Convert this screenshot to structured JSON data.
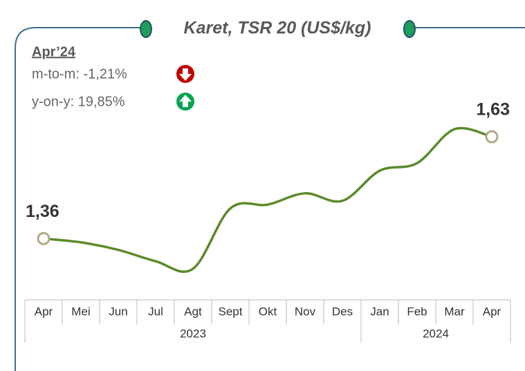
{
  "chart_data": {
    "type": "line",
    "title": "Karet, TSR 20 (US$/kg)",
    "annotations": {
      "period": "Apr’24",
      "mom": "m-to-m: -1,21%",
      "yoy": "y-on-y: 19,85%"
    },
    "categories": [
      "Apr",
      "Mei",
      "Jun",
      "Jul",
      "Agt",
      "Sept",
      "Okt",
      "Nov",
      "Des",
      "Jan",
      "Feb",
      "Mar",
      "Apr"
    ],
    "groups": [
      {
        "label": "2023",
        "count": 9
      },
      {
        "label": "2024",
        "count": 4
      }
    ],
    "series": [
      {
        "name": "Karet",
        "color": "#5b8a2a",
        "values": [
          1.36,
          1.35,
          1.33,
          1.3,
          1.28,
          1.44,
          1.45,
          1.48,
          1.46,
          1.54,
          1.56,
          1.65,
          1.63
        ],
        "value_labels": [
          "1,36",
          null,
          null,
          null,
          null,
          null,
          null,
          null,
          null,
          null,
          null,
          null,
          "1,63"
        ]
      }
    ]
  }
}
